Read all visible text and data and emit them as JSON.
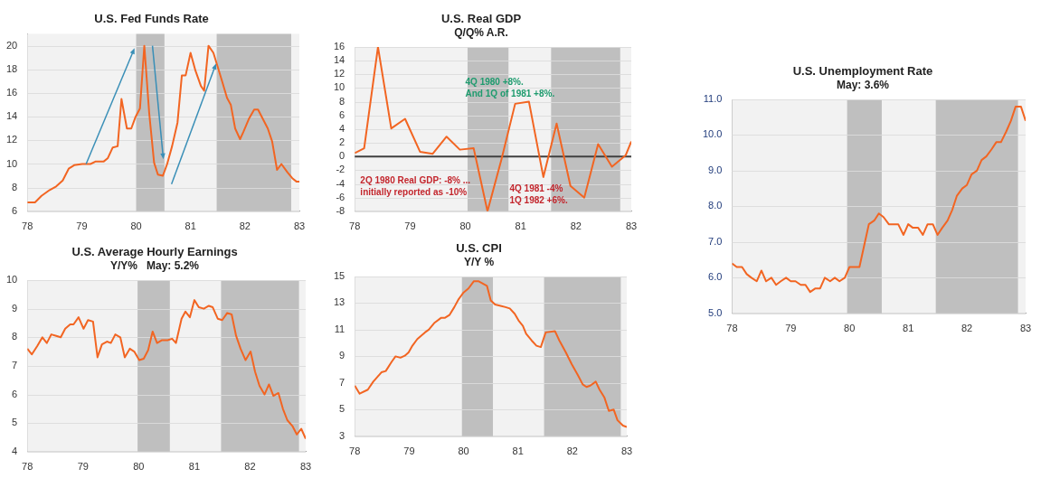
{
  "chart_data": [
    {
      "type": "line",
      "title": "U.S. Fed Funds Rate",
      "xlim": [
        78,
        83
      ],
      "xticks": [
        78,
        79,
        80,
        81,
        82,
        83
      ],
      "ylim": [
        6,
        21
      ],
      "yticks": [
        6,
        8,
        10,
        12,
        14,
        16,
        18,
        20
      ],
      "grid": "y",
      "bands": [
        {
          "axis": "x",
          "from": 80.0,
          "to": 80.52,
          "color": "#bfbfbf"
        },
        {
          "axis": "x",
          "from": 81.48,
          "to": 82.85,
          "color": "#bfbfbf"
        }
      ],
      "x": [
        78.0,
        78.14,
        78.26,
        78.41,
        78.53,
        78.65,
        78.76,
        78.86,
        79.01,
        79.16,
        79.25,
        79.4,
        79.48,
        79.57,
        79.66,
        79.73,
        79.83,
        79.91,
        79.99,
        80.07,
        80.15,
        80.24,
        80.33,
        80.4,
        80.49,
        80.57,
        80.66,
        80.76,
        80.84,
        80.91,
        81.0,
        81.09,
        81.19,
        81.25,
        81.33,
        81.42,
        81.48,
        81.58,
        81.67,
        81.74,
        81.82,
        81.91,
        81.97,
        82.07,
        82.17,
        82.24,
        82.33,
        82.42,
        82.5,
        82.59,
        82.67,
        82.78,
        82.87,
        82.95,
        83.0
      ],
      "series": [
        {
          "color": "#f26522",
          "values": [
            6.75,
            6.75,
            7.3,
            7.8,
            8.1,
            8.6,
            9.6,
            9.9,
            10.0,
            10.0,
            10.2,
            10.2,
            10.5,
            11.4,
            11.5,
            15.5,
            13.0,
            13.0,
            14.0,
            14.7,
            20.0,
            14.3,
            10.1,
            9.1,
            9.0,
            10.0,
            11.5,
            13.5,
            17.5,
            17.5,
            19.4,
            17.9,
            16.6,
            16.2,
            20.0,
            19.4,
            18.5,
            17.0,
            15.6,
            15.0,
            13.0,
            12.1,
            12.7,
            13.8,
            14.6,
            14.6,
            13.8,
            13.0,
            11.9,
            9.5,
            10.0,
            9.3,
            8.8,
            8.5,
            8.5
          ]
        }
      ]
    },
    {
      "type": "line",
      "title": "U.S. Real GDP",
      "subtitle": "Q/Q% A.R.",
      "xlim": [
        78,
        83
      ],
      "xticks": [
        78,
        79,
        80,
        81,
        82,
        83
      ],
      "ylim": [
        -8,
        16
      ],
      "yticks": [
        -8,
        -6,
        -4,
        -2,
        0,
        2,
        4,
        6,
        8,
        10,
        12,
        14,
        16
      ],
      "grid": "y",
      "bands": [
        {
          "axis": "x",
          "from": 80.04,
          "to": 80.78,
          "color": "#bfbfbf"
        },
        {
          "axis": "x",
          "from": 81.55,
          "to": 82.8,
          "color": "#bfbfbf"
        }
      ],
      "ref_lines": [
        {
          "axis": "y",
          "value": 0,
          "color": "#404040"
        }
      ],
      "annotations": [
        "4Q 1980 +8%.\nAnd 1Q of 1981 +8%.",
        "2Q 1980 Real GDP: -8% ...\ninitially reported as -10%",
        "4Q 1981 -4%\n1Q 1982 +6%."
      ],
      "x": [
        78.0,
        78.17,
        78.42,
        78.66,
        78.91,
        79.18,
        79.41,
        79.66,
        79.9,
        80.15,
        80.4,
        80.65,
        80.9,
        81.15,
        81.41,
        81.65,
        81.9,
        82.15,
        82.4,
        82.65,
        82.9,
        83.0
      ],
      "series": [
        {
          "color": "#f26522",
          "values": [
            0.5,
            1.2,
            16,
            4.1,
            5.5,
            0.7,
            0.4,
            2.9,
            1.0,
            1.2,
            -8.0,
            -0.5,
            7.7,
            8.0,
            -3.0,
            4.8,
            -4.3,
            -6.0,
            1.8,
            -1.5,
            0.2,
            2.2
          ]
        }
      ]
    },
    {
      "type": "line",
      "title": "U.S. Unemployment Rate",
      "subtitle": "May: 3.6%",
      "xlim": [
        78,
        83
      ],
      "xticks": [
        78,
        79,
        80,
        81,
        82,
        83
      ],
      "ylim": [
        5,
        11
      ],
      "yticks": [
        {
          "value": 5,
          "label": "5.0"
        },
        {
          "value": 6,
          "label": "6.0"
        },
        {
          "value": 7,
          "label": "7.0"
        },
        {
          "value": 8,
          "label": "8.0"
        },
        {
          "value": 9,
          "label": "9.0"
        },
        {
          "value": 10,
          "label": "10.0"
        },
        {
          "value": 11,
          "label": "11.0"
        }
      ],
      "grid": "y",
      "bands": [
        {
          "axis": "x",
          "from": 79.96,
          "to": 80.55,
          "color": "#bfbfbf"
        },
        {
          "axis": "x",
          "from": 81.47,
          "to": 82.87,
          "color": "#bfbfbf"
        }
      ],
      "x": [
        78.0,
        78.08,
        78.17,
        78.25,
        78.33,
        78.42,
        78.5,
        78.58,
        78.67,
        78.75,
        78.83,
        78.92,
        79.0,
        79.08,
        79.17,
        79.25,
        79.33,
        79.42,
        79.5,
        79.58,
        79.67,
        79.75,
        79.83,
        79.92,
        80.0,
        80.08,
        80.17,
        80.25,
        80.33,
        80.42,
        80.5,
        80.58,
        80.67,
        80.75,
        80.83,
        80.92,
        81.0,
        81.08,
        81.17,
        81.25,
        81.33,
        81.42,
        81.5,
        81.58,
        81.67,
        81.75,
        81.83,
        81.92,
        82.0,
        82.08,
        82.17,
        82.25,
        82.33,
        82.42,
        82.5,
        82.58,
        82.67,
        82.75,
        82.83,
        82.92,
        83.0
      ],
      "series": [
        {
          "color": "#f26522",
          "values": [
            6.4,
            6.3,
            6.3,
            6.1,
            6.0,
            5.9,
            6.2,
            5.9,
            6.0,
            5.8,
            5.9,
            6.0,
            5.9,
            5.9,
            5.8,
            5.8,
            5.6,
            5.7,
            5.7,
            6.0,
            5.9,
            6.0,
            5.9,
            6.0,
            6.3,
            6.3,
            6.3,
            6.9,
            7.5,
            7.6,
            7.8,
            7.7,
            7.5,
            7.5,
            7.5,
            7.2,
            7.5,
            7.4,
            7.4,
            7.2,
            7.5,
            7.5,
            7.2,
            7.4,
            7.6,
            7.9,
            8.3,
            8.5,
            8.6,
            8.9,
            9.0,
            9.3,
            9.4,
            9.6,
            9.8,
            9.8,
            10.1,
            10.4,
            10.8,
            10.8,
            10.4
          ]
        }
      ]
    },
    {
      "type": "line",
      "title": "U.S. Average Hourly Earnings",
      "subtitle": "Y/Y%   May: 5.2%",
      "xlim": [
        78,
        83
      ],
      "xticks": [
        78,
        79,
        80,
        81,
        82,
        83
      ],
      "ylim": [
        4,
        10
      ],
      "yticks": [
        4,
        5,
        6,
        7,
        8,
        9,
        10
      ],
      "grid": "y",
      "bands": [
        {
          "axis": "x",
          "from": 79.98,
          "to": 80.56,
          "color": "#bfbfbf"
        },
        {
          "axis": "x",
          "from": 81.48,
          "to": 82.88,
          "color": "#bfbfbf"
        }
      ],
      "x": [
        78.0,
        78.08,
        78.18,
        78.27,
        78.35,
        78.43,
        78.52,
        78.6,
        78.68,
        78.77,
        78.83,
        78.92,
        79.01,
        79.09,
        79.18,
        79.26,
        79.34,
        79.43,
        79.5,
        79.58,
        79.67,
        79.75,
        79.84,
        79.92,
        80.01,
        80.09,
        80.17,
        80.25,
        80.33,
        80.42,
        80.52,
        80.6,
        80.67,
        80.77,
        80.84,
        80.92,
        81.0,
        81.08,
        81.17,
        81.26,
        81.33,
        81.42,
        81.5,
        81.59,
        81.67,
        81.75,
        81.83,
        81.92,
        82.01,
        82.09,
        82.17,
        82.26,
        82.34,
        82.42,
        82.51,
        82.59,
        82.67,
        82.76,
        82.84,
        82.92,
        83.0
      ],
      "series": [
        {
          "color": "#f26522",
          "values": [
            7.6,
            7.4,
            7.7,
            8.0,
            7.8,
            8.1,
            8.05,
            8.0,
            8.3,
            8.45,
            8.45,
            8.7,
            8.3,
            8.6,
            8.55,
            7.3,
            7.75,
            7.85,
            7.8,
            8.1,
            8.0,
            7.3,
            7.6,
            7.5,
            7.2,
            7.25,
            7.55,
            8.2,
            7.8,
            7.9,
            7.9,
            7.95,
            7.8,
            8.65,
            8.9,
            8.7,
            9.3,
            9.05,
            9.0,
            9.1,
            9.05,
            8.65,
            8.6,
            8.85,
            8.8,
            8.05,
            7.6,
            7.2,
            7.5,
            6.8,
            6.3,
            6.0,
            6.35,
            5.95,
            6.05,
            5.5,
            5.1,
            4.9,
            4.6,
            4.8,
            4.45
          ]
        }
      ]
    },
    {
      "type": "line",
      "title": "U.S. CPI",
      "subtitle": "Y/Y %",
      "xlim": [
        78,
        83
      ],
      "xticks": [
        78,
        79,
        80,
        81,
        82,
        83
      ],
      "ylim": [
        3,
        15
      ],
      "yticks": [
        3,
        5,
        7,
        9,
        11,
        13,
        15
      ],
      "grid": "y",
      "bands": [
        {
          "axis": "x",
          "from": 79.97,
          "to": 80.54,
          "color": "#bfbfbf"
        },
        {
          "axis": "x",
          "from": 81.48,
          "to": 82.89,
          "color": "#bfbfbf"
        }
      ],
      "x": [
        78.0,
        78.09,
        78.24,
        78.34,
        78.49,
        78.57,
        78.68,
        78.75,
        78.84,
        78.92,
        78.99,
        79.06,
        79.15,
        79.29,
        79.36,
        79.46,
        79.59,
        79.66,
        79.74,
        79.83,
        79.91,
        80.0,
        80.09,
        80.19,
        80.27,
        80.34,
        80.43,
        80.5,
        80.58,
        80.68,
        80.77,
        80.85,
        80.94,
        81.01,
        81.09,
        81.15,
        81.25,
        81.34,
        81.42,
        81.51,
        81.68,
        81.76,
        81.88,
        81.99,
        82.1,
        82.19,
        82.26,
        82.33,
        82.43,
        82.5,
        82.59,
        82.67,
        82.76,
        82.83,
        82.93,
        83.0
      ],
      "series": [
        {
          "color": "#f26522",
          "values": [
            6.8,
            6.2,
            6.5,
            7.1,
            7.8,
            7.9,
            8.6,
            9.0,
            8.9,
            9.05,
            9.3,
            9.8,
            10.3,
            10.8,
            11.0,
            11.5,
            11.9,
            11.9,
            12.1,
            12.7,
            13.3,
            13.8,
            14.1,
            14.65,
            14.65,
            14.5,
            14.3,
            13.2,
            12.9,
            12.8,
            12.7,
            12.6,
            12.2,
            11.7,
            11.3,
            10.7,
            10.2,
            9.8,
            9.7,
            10.8,
            10.9,
            10.2,
            9.3,
            8.4,
            7.6,
            6.9,
            6.7,
            6.8,
            7.1,
            6.5,
            5.9,
            4.9,
            5.0,
            4.2,
            3.8,
            3.7
          ]
        }
      ]
    }
  ]
}
